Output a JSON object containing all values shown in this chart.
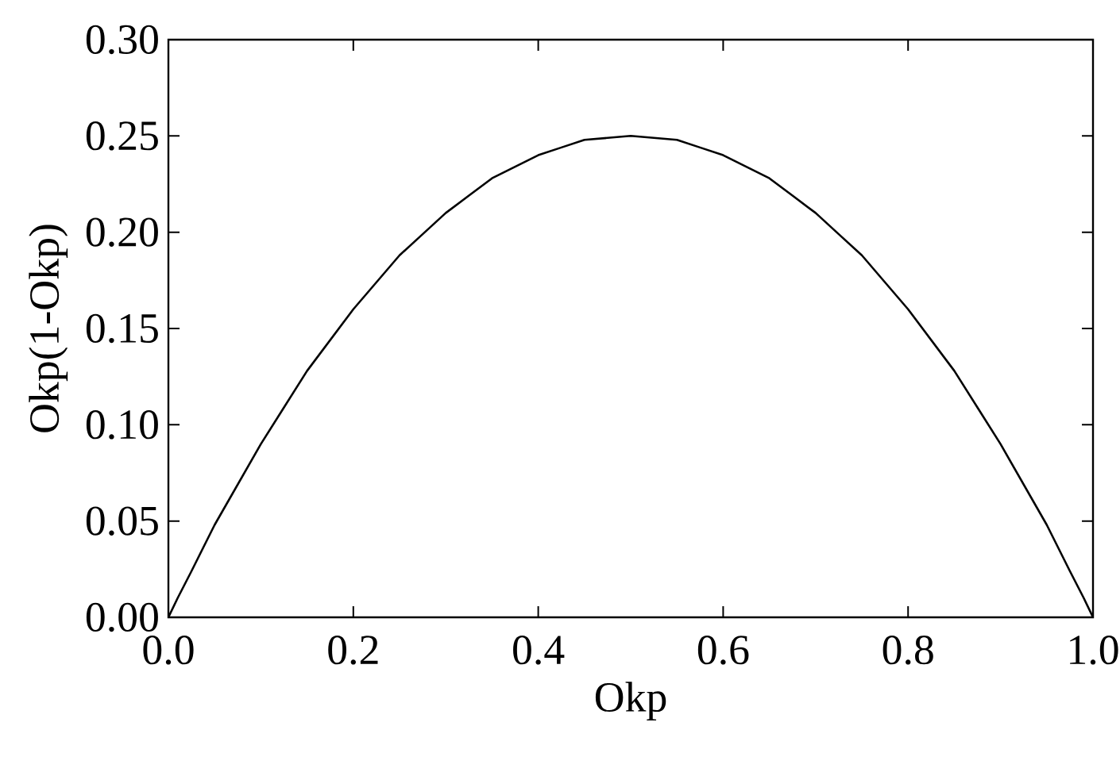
{
  "chart_data": {
    "type": "line",
    "xlabel": "Okp",
    "ylabel": "Okp(1-Okp)",
    "x": [
      0,
      0.01,
      0.025,
      0.05,
      0.075,
      0.1,
      0.125,
      0.15,
      0.175,
      0.2,
      0.225,
      0.25,
      0.275,
      0.3,
      0.325,
      0.35,
      0.375,
      0.4,
      0.425,
      0.45,
      0.475,
      0.5,
      0.525,
      0.55,
      0.575,
      0.6,
      0.625,
      0.65,
      0.675,
      0.7,
      0.725,
      0.75,
      0.775,
      0.8,
      0.825,
      0.85,
      0.875,
      0.9,
      0.925,
      0.95,
      0.975,
      0.99,
      1
    ],
    "series": [
      {
        "color": "#000000",
        "values": [
          0,
          0.01,
          0.024,
          0.048,
          0.069,
          0.09,
          0.109,
          0.128,
          0.144,
          0.16,
          0.174,
          0.188,
          0.199,
          0.21,
          0.219,
          0.228,
          0.234,
          0.24,
          0.244,
          0.248,
          0.249,
          0.25,
          0.249,
          0.248,
          0.244,
          0.24,
          0.234,
          0.228,
          0.219,
          0.21,
          0.199,
          0.188,
          0.174,
          0.16,
          0.144,
          0.128,
          0.109,
          0.09,
          0.069,
          0.048,
          0.024,
          0.01,
          0
        ]
      }
    ],
    "xlim": [
      0,
      1
    ],
    "ylim": [
      0,
      0.3
    ],
    "xticks": [
      {
        "value": 0,
        "label": "0.0"
      },
      {
        "value": 0.2,
        "label": "0.2"
      },
      {
        "value": 0.4,
        "label": "0.4"
      },
      {
        "value": 0.6,
        "label": "0.6"
      },
      {
        "value": 0.8,
        "label": "0.8"
      },
      {
        "value": 1,
        "label": "1.0"
      }
    ],
    "yticks": [
      {
        "value": 0,
        "label": "0.00"
      },
      {
        "value": 0.05,
        "label": "0.05"
      },
      {
        "value": 0.1,
        "label": "0.10"
      },
      {
        "value": 0.15,
        "label": "0.15"
      },
      {
        "value": 0.2,
        "label": "0.20"
      },
      {
        "value": 0.25,
        "label": "0.25"
      },
      {
        "value": 0.3,
        "label": "0.30"
      }
    ],
    "grid": false,
    "marker": "none",
    "line_style": "solid"
  }
}
